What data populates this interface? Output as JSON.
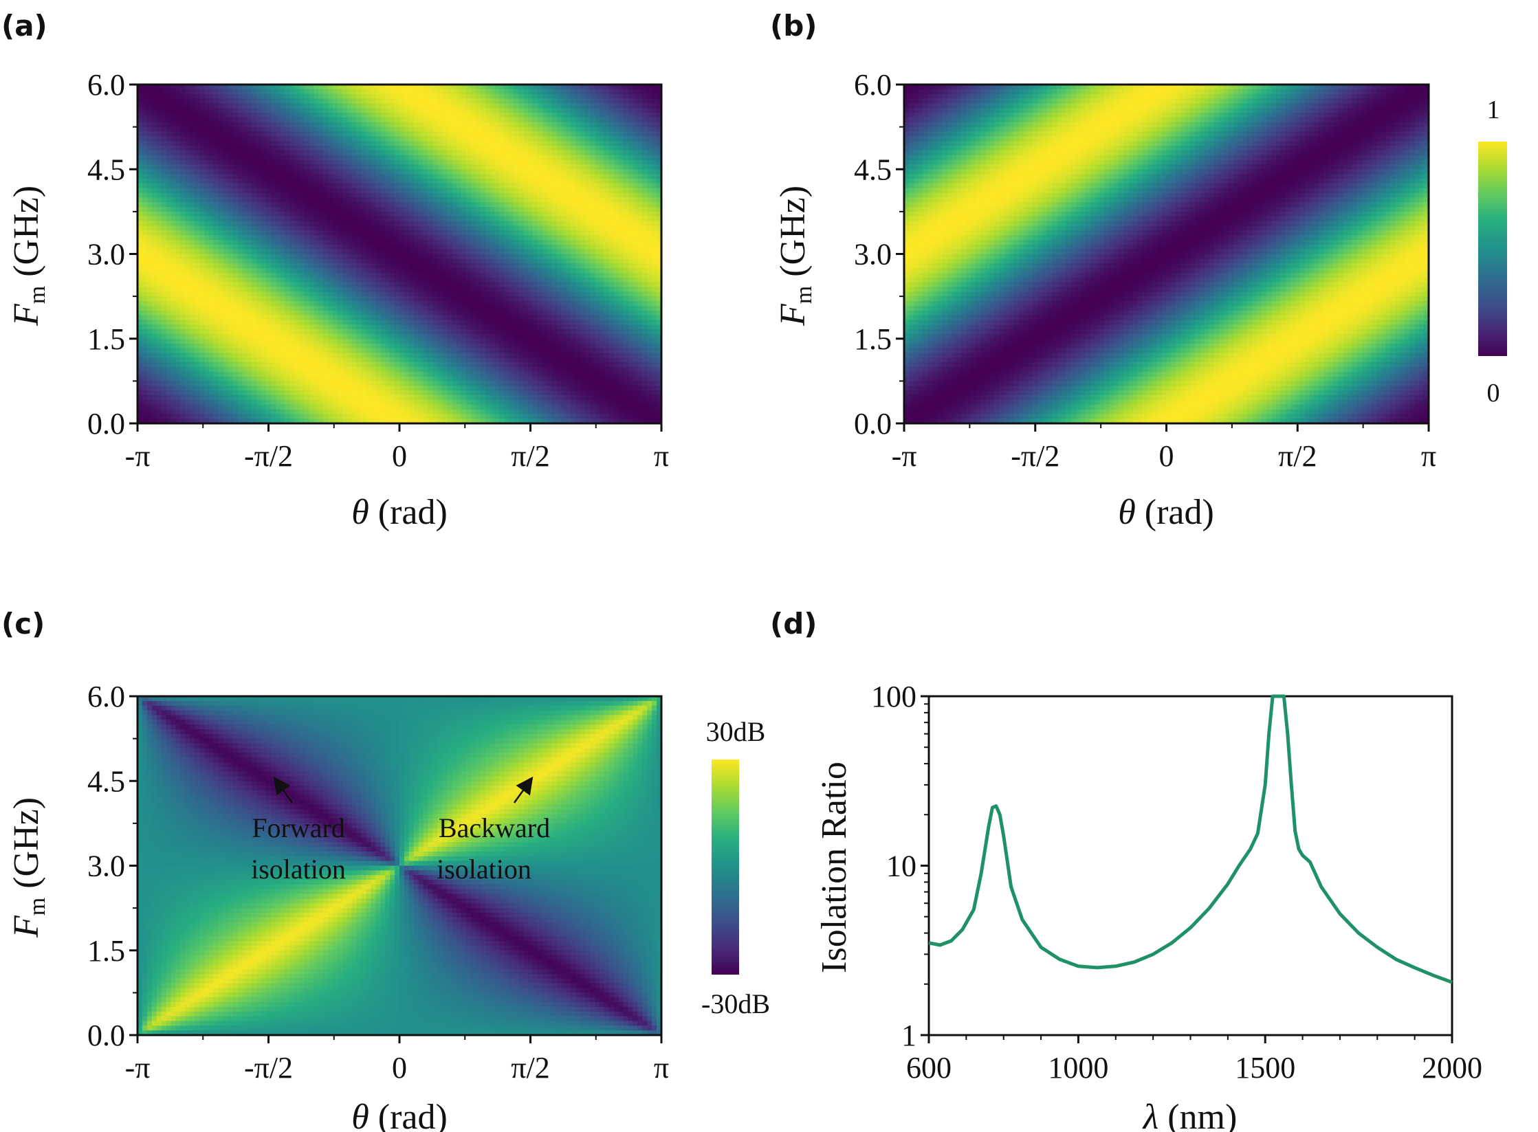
{
  "panels": {
    "a": {
      "label": "(a)",
      "type": "heatmap",
      "ylabel_main": "F",
      "ylabel_sub": "m",
      "ylabel_unit": " (GHz)",
      "xlabel_var": "θ",
      "xlabel_unit": " (rad)",
      "xticks": [
        "-π",
        "-π/2",
        "0",
        "π/2",
        "π"
      ],
      "yticks": [
        "6.0",
        "4.5",
        "3.0",
        "1.5",
        "0.0"
      ],
      "xlim": [
        -3.14159,
        3.14159
      ],
      "ylim": [
        0,
        6.0
      ],
      "description": "normalized transmission, bright band along theta + 2*pi*Fm/6 = const (slope down-right)"
    },
    "b": {
      "label": "(b)",
      "type": "heatmap",
      "ylabel_main": "F",
      "ylabel_sub": "m",
      "ylabel_unit": " (GHz)",
      "xlabel_var": "θ",
      "xlabel_unit": " (rad)",
      "xticks": [
        "-π",
        "-π/2",
        "0",
        "π/2",
        "π"
      ],
      "yticks": [
        "6.0",
        "4.5",
        "3.0",
        "1.5",
        "0.0"
      ],
      "xlim": [
        -3.14159,
        3.14159
      ],
      "ylim": [
        0,
        6.0
      ],
      "colorbar": {
        "max_label": "1",
        "min_label": "0"
      }
    },
    "c": {
      "label": "(c)",
      "type": "heatmap",
      "ylabel_main": "F",
      "ylabel_sub": "m",
      "ylabel_unit": " (GHz)",
      "xlabel_var": "θ",
      "xlabel_unit": " (rad)",
      "xticks": [
        "-π",
        "-π/2",
        "0",
        "π/2",
        "π"
      ],
      "yticks": [
        "6.0",
        "4.5",
        "3.0",
        "1.5",
        "0.0"
      ],
      "xlim": [
        -3.14159,
        3.14159
      ],
      "ylim": [
        0,
        6.0
      ],
      "colorbar": {
        "max_label": "30dB",
        "min_label": "-30dB"
      },
      "annotations": {
        "forward_line1": "Forward",
        "forward_line2": "isolation",
        "backward_line1": "Backward",
        "backward_line2": "isolation"
      }
    },
    "d": {
      "label": "(d)",
      "type": "line",
      "ylabel": "Isolation Ratio",
      "xlabel_var": "λ",
      "xlabel_unit": " (nm)",
      "xticks": [
        "600",
        "1000",
        "1500",
        "2000"
      ],
      "yticks": [
        "100",
        "10",
        "1"
      ],
      "line_color": "#1f9166"
    }
  },
  "chart_data": [
    {
      "panel": "a",
      "type": "heatmap",
      "title": "",
      "xlabel": "θ (rad)",
      "ylabel": "Fm (GHz)",
      "x_range": [
        -3.14159,
        3.14159
      ],
      "y_range": [
        0,
        6.0
      ],
      "value_range": [
        0,
        1
      ],
      "model": "T = (1 + cos(theta + pi*Fm/3)) / 2"
    },
    {
      "panel": "b",
      "type": "heatmap",
      "title": "",
      "xlabel": "θ (rad)",
      "ylabel": "Fm (GHz)",
      "x_range": [
        -3.14159,
        3.14159
      ],
      "y_range": [
        0,
        6.0
      ],
      "value_range": [
        0,
        1
      ],
      "model": "T = (1 + cos(theta - pi*Fm/3)) / 2"
    },
    {
      "panel": "c",
      "type": "heatmap",
      "title": "",
      "xlabel": "θ (rad)",
      "ylabel": "Fm (GHz)",
      "x_range": [
        -3.14159,
        3.14159
      ],
      "y_range": [
        0,
        6.0
      ],
      "value_range_db": [
        -30,
        30
      ],
      "model": "10*log10(Ta/Tb)"
    },
    {
      "panel": "d",
      "type": "line",
      "title": "",
      "xlabel": "λ (nm)",
      "ylabel": "Isolation Ratio",
      "xlim": [
        600,
        2000
      ],
      "ylim": [
        1,
        100
      ],
      "yscale": "log",
      "series": [
        {
          "name": "Isolation Ratio",
          "x": [
            600,
            630,
            660,
            690,
            720,
            740,
            760,
            770,
            780,
            790,
            800,
            820,
            850,
            900,
            950,
            1000,
            1050,
            1100,
            1150,
            1200,
            1250,
            1300,
            1350,
            1400,
            1430,
            1460,
            1480,
            1500,
            1510,
            1520,
            1530,
            1540,
            1550,
            1560,
            1570,
            1580,
            1590,
            1600,
            1620,
            1650,
            1700,
            1750,
            1800,
            1850,
            1900,
            1950,
            2000
          ],
          "y": [
            3.5,
            3.4,
            3.6,
            4.2,
            5.5,
            9.0,
            17.0,
            22.0,
            22.5,
            20.0,
            15.0,
            7.5,
            4.8,
            3.3,
            2.8,
            2.55,
            2.5,
            2.55,
            2.7,
            3.0,
            3.5,
            4.3,
            5.6,
            7.8,
            10.0,
            12.5,
            15.5,
            30.0,
            60.0,
            100.0,
            100.0,
            100.0,
            100.0,
            60.0,
            30.0,
            16.0,
            12.5,
            11.5,
            10.5,
            7.5,
            5.2,
            4.0,
            3.3,
            2.8,
            2.5,
            2.25,
            2.05
          ]
        }
      ]
    }
  ]
}
